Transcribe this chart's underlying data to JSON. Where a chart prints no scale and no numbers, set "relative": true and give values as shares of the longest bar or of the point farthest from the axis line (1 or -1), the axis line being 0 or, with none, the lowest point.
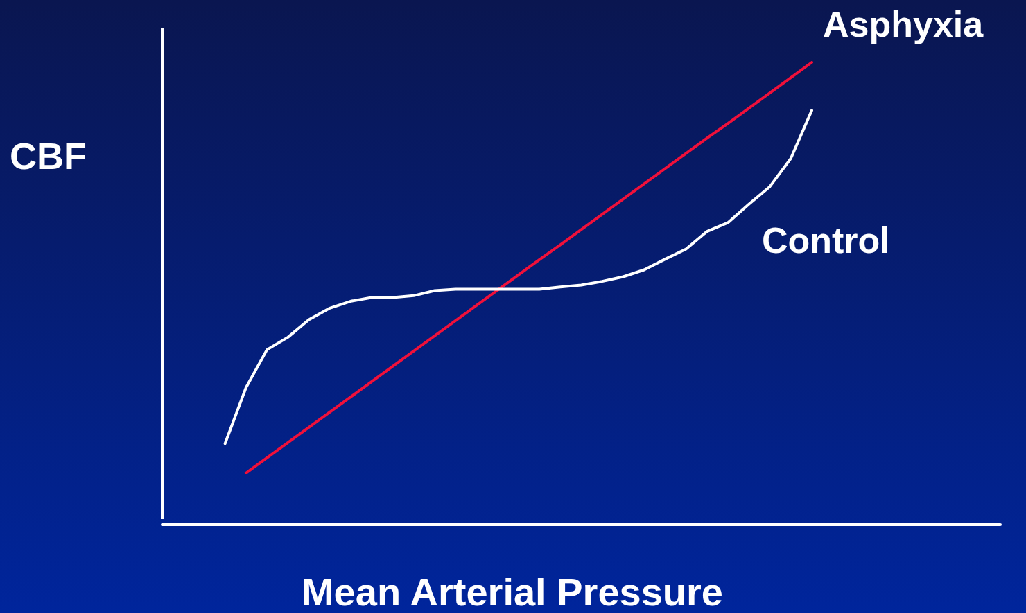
{
  "chart_data": {
    "type": "line",
    "relative": true,
    "xlabel": "Mean Arterial Pressure",
    "ylabel": "CBF",
    "grid": false,
    "legend": false,
    "marker": "none",
    "line_style": "solid",
    "categories": [
      null,
      null,
      null,
      null,
      null,
      null,
      null,
      null,
      null,
      null,
      null,
      null,
      null,
      null,
      null,
      null,
      null,
      null,
      null,
      null,
      null,
      null,
      null,
      null,
      null,
      null,
      null,
      null,
      null,
      null,
      null,
      null,
      null,
      null,
      null,
      null,
      null,
      null,
      null,
      null,
      null
    ],
    "series": [
      {
        "name": "Asphyxia",
        "color": "#f0103a",
        "values": [
          null,
          null,
          null,
          null,
          0.111,
          0.144,
          0.177,
          0.21,
          0.243,
          0.276,
          0.309,
          0.342,
          0.375,
          0.408,
          0.441,
          0.474,
          0.507,
          0.54,
          0.573,
          0.605,
          0.638,
          0.671,
          0.704,
          0.737,
          0.77,
          0.803,
          0.836,
          0.868,
          0.901,
          0.934,
          0.967,
          1.0,
          null,
          null,
          null,
          null,
          null,
          null,
          null,
          null,
          null
        ]
      },
      {
        "name": "Control",
        "color": "#ffffff",
        "values": [
          null,
          null,
          null,
          0.175,
          0.296,
          0.378,
          0.405,
          0.443,
          0.468,
          0.483,
          0.491,
          0.491,
          0.495,
          0.506,
          0.509,
          0.509,
          0.509,
          0.509,
          0.509,
          0.514,
          0.518,
          0.526,
          0.536,
          0.551,
          0.574,
          0.596,
          0.634,
          0.653,
          0.693,
          0.731,
          0.792,
          0.896,
          null,
          null,
          null,
          null,
          null,
          null,
          null,
          null,
          null
        ]
      }
    ]
  }
}
